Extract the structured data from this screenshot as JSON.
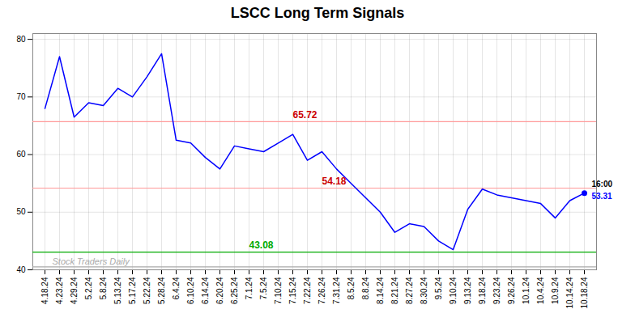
{
  "chart_data": {
    "type": "line",
    "title": "LSCC Long Term Signals",
    "categories": [
      "4.18.24",
      "4.23.24",
      "4.29.24",
      "5.2.24",
      "5.8.24",
      "5.13.24",
      "5.17.24",
      "5.22.24",
      "5.28.24",
      "6.4.24",
      "6.10.24",
      "6.14.24",
      "6.20.24",
      "6.25.24",
      "7.1.24",
      "7.5.24",
      "7.10.24",
      "7.15.24",
      "7.22.24",
      "7.26.24",
      "7.31.24",
      "8.5.24",
      "8.8.24",
      "8.14.24",
      "8.21.24",
      "8.27.24",
      "8.30.24",
      "9.5.24",
      "9.10.24",
      "9.13.24",
      "9.18.24",
      "9.23.24",
      "9.26.24",
      "10.1.24",
      "10.4.24",
      "10.9.24",
      "10.14.24",
      "10.18.24"
    ],
    "values": [
      68.0,
      77.0,
      66.5,
      69.0,
      68.5,
      71.5,
      70.0,
      73.5,
      77.5,
      62.5,
      62.0,
      59.5,
      57.5,
      61.5,
      61.0,
      60.5,
      62.0,
      63.5,
      59.0,
      60.5,
      57.5,
      55.0,
      52.5,
      50.0,
      46.5,
      48.0,
      47.5,
      45.0,
      43.5,
      50.5,
      54.0,
      53.0,
      52.5,
      52.0,
      51.5,
      49.0,
      52.0,
      53.31
    ],
    "color": "blue",
    "ylim": [
      40,
      81
    ],
    "yticks": [
      40,
      50,
      60,
      70,
      80
    ],
    "grid": true,
    "reference_lines": [
      {
        "y": 65.72,
        "color": "#ff9999",
        "label": "65.72",
        "label_color": "#cc0000"
      },
      {
        "y": 54.18,
        "color": "#ff9999",
        "label": "54.18",
        "label_color": "#cc0000"
      },
      {
        "y": 43.08,
        "color": "#00aa00",
        "label": "43.08",
        "label_color": "#00aa00"
      },
      {
        "y": 40.5,
        "color": "#aaaaaa"
      }
    ],
    "annotations": [
      {
        "text": "16:00",
        "color": "black"
      },
      {
        "text": "53.31",
        "color": "blue"
      },
      {
        "text": "Stock Traders Daily",
        "color": "#aaaaaa"
      }
    ]
  }
}
